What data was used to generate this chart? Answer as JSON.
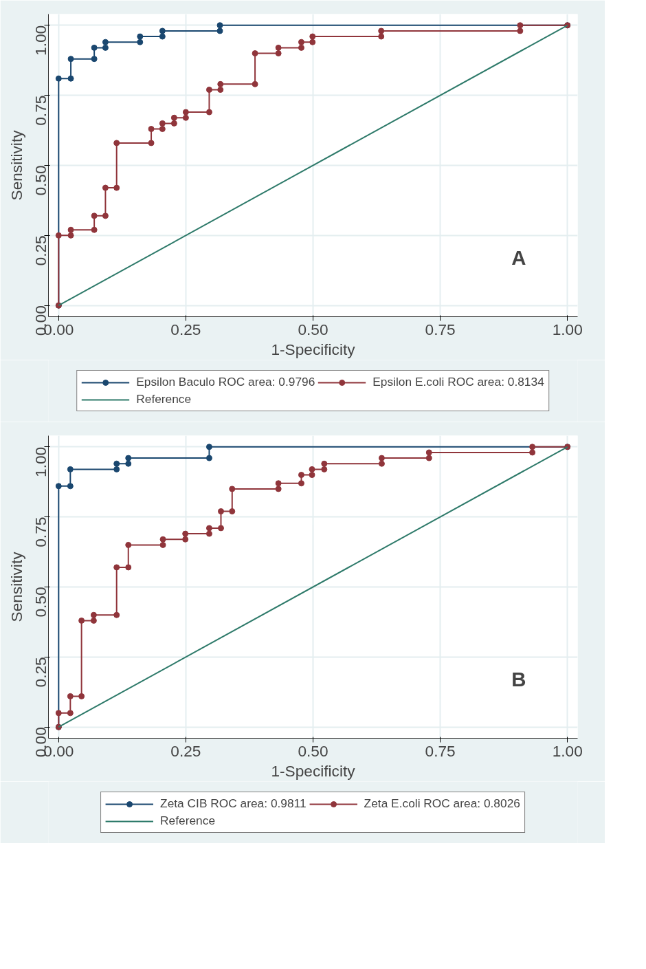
{
  "chart_data": [
    {
      "type": "line",
      "xlabel": "1-Specificity",
      "ylabel": "Sensitivity",
      "xlim": [
        -0.02,
        1.02
      ],
      "ylim": [
        -0.04,
        1.04
      ],
      "xticks": [
        {
          "value": 0,
          "label": "0.00"
        },
        {
          "value": 0.25,
          "label": "0.25"
        },
        {
          "value": 0.5,
          "label": "0.50"
        },
        {
          "value": 0.75,
          "label": "0.75"
        },
        {
          "value": 1,
          "label": "1.00"
        }
      ],
      "yticks": [
        {
          "value": 0,
          "label": "0.00"
        },
        {
          "value": 0.25,
          "label": "0.25"
        },
        {
          "value": 0.5,
          "label": "0.50"
        },
        {
          "value": 0.75,
          "label": "0.75"
        },
        {
          "value": 1,
          "label": "1.00"
        }
      ],
      "grid": true,
      "legend": "bottom",
      "annotations": [
        "A"
      ],
      "series": [
        {
          "name": "Epsilon Baculo ROC area: 0.9796",
          "color": "#1a476f",
          "marker": "circle",
          "x": [
            0,
            0,
            0.024,
            0.024,
            0.07,
            0.07,
            0.092,
            0.092,
            0.16,
            0.16,
            0.204,
            0.204,
            0.317,
            0.317,
            1
          ],
          "values": [
            0,
            0.81,
            0.81,
            0.88,
            0.88,
            0.92,
            0.92,
            0.94,
            0.94,
            0.96,
            0.96,
            0.98,
            0.98,
            1,
            1
          ]
        },
        {
          "name": "Epsilon E.coli ROC area: 0.8134",
          "color": "#90353b",
          "marker": "circle",
          "x": [
            0,
            0,
            0.024,
            0.024,
            0.07,
            0.07,
            0.092,
            0.092,
            0.114,
            0.114,
            0.182,
            0.182,
            0.204,
            0.204,
            0.227,
            0.227,
            0.25,
            0.25,
            0.296,
            0.296,
            0.318,
            0.318,
            0.386,
            0.386,
            0.432,
            0.432,
            0.477,
            0.477,
            0.499,
            0.499,
            0.634,
            0.634,
            0.907,
            0.907,
            1
          ],
          "values": [
            0,
            0.25,
            0.25,
            0.27,
            0.27,
            0.32,
            0.32,
            0.42,
            0.42,
            0.58,
            0.58,
            0.63,
            0.63,
            0.65,
            0.65,
            0.67,
            0.67,
            0.69,
            0.69,
            0.77,
            0.77,
            0.79,
            0.79,
            0.9,
            0.9,
            0.92,
            0.92,
            0.94,
            0.94,
            0.96,
            0.96,
            0.98,
            0.98,
            1,
            1
          ]
        },
        {
          "name": "Reference",
          "color": "#2e7a6a",
          "marker": "none",
          "x": [
            0,
            1
          ],
          "values": [
            0,
            1
          ]
        }
      ]
    },
    {
      "type": "line",
      "xlabel": "1-Specificity",
      "ylabel": "Sensitivity",
      "xlim": [
        -0.02,
        1.02
      ],
      "ylim": [
        -0.04,
        1.04
      ],
      "xticks": [
        {
          "value": 0,
          "label": "0.00"
        },
        {
          "value": 0.25,
          "label": "0.25"
        },
        {
          "value": 0.5,
          "label": "0.50"
        },
        {
          "value": 0.75,
          "label": "0.75"
        },
        {
          "value": 1,
          "label": "1.00"
        }
      ],
      "yticks": [
        {
          "value": 0,
          "label": "0.00"
        },
        {
          "value": 0.25,
          "label": "0.25"
        },
        {
          "value": 0.5,
          "label": "0.50"
        },
        {
          "value": 0.75,
          "label": "0.75"
        },
        {
          "value": 1,
          "label": "1.00"
        }
      ],
      "grid": true,
      "legend": "bottom",
      "annotations": [
        "B"
      ],
      "series": [
        {
          "name": "Zeta CIB ROC area: 0.9811",
          "color": "#1a476f",
          "marker": "circle",
          "x": [
            0,
            0,
            0.023,
            0.023,
            0.114,
            0.114,
            0.137,
            0.137,
            0.296,
            0.296,
            1
          ],
          "values": [
            0,
            0.86,
            0.86,
            0.92,
            0.92,
            0.94,
            0.94,
            0.96,
            0.96,
            1,
            1
          ]
        },
        {
          "name": "Zeta E.coli ROC area: 0.8026",
          "color": "#90353b",
          "marker": "circle",
          "x": [
            0,
            0,
            0.023,
            0.023,
            0.045,
            0.045,
            0.069,
            0.069,
            0.114,
            0.114,
            0.137,
            0.137,
            0.205,
            0.205,
            0.249,
            0.249,
            0.296,
            0.296,
            0.319,
            0.319,
            0.341,
            0.341,
            0.432,
            0.432,
            0.477,
            0.477,
            0.498,
            0.498,
            0.522,
            0.522,
            0.635,
            0.635,
            0.728,
            0.728,
            0.931,
            0.931,
            1
          ],
          "values": [
            0,
            0.05,
            0.05,
            0.11,
            0.11,
            0.38,
            0.38,
            0.4,
            0.4,
            0.57,
            0.57,
            0.65,
            0.65,
            0.67,
            0.67,
            0.69,
            0.69,
            0.71,
            0.71,
            0.77,
            0.77,
            0.85,
            0.85,
            0.87,
            0.87,
            0.9,
            0.9,
            0.92,
            0.92,
            0.94,
            0.94,
            0.96,
            0.96,
            0.98,
            0.98,
            1,
            1
          ]
        },
        {
          "name": "Reference",
          "color": "#2e7a6a",
          "marker": "none",
          "x": [
            0,
            1
          ],
          "values": [
            0,
            1
          ]
        }
      ]
    }
  ]
}
